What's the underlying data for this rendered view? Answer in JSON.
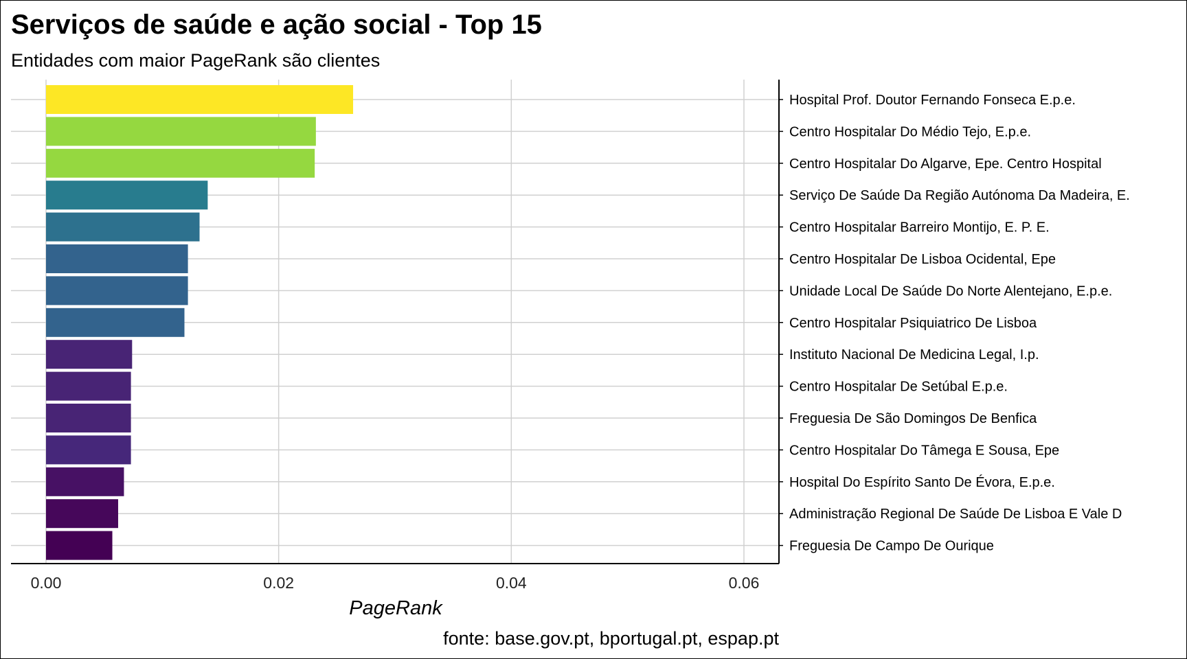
{
  "chart_data": {
    "type": "bar",
    "orientation": "horizontal",
    "title": "Serviços de saúde e ação social - Top 15",
    "subtitle": "Entidades com maior PageRank são clientes",
    "xlabel": "PageRank",
    "ylabel": "",
    "caption": "fonte: base.gov.pt, bportugal.pt, espap.pt",
    "xlim": [
      0,
      0.063
    ],
    "xticks": [
      0.0,
      0.02,
      0.04,
      0.06
    ],
    "xtick_labels": [
      "0.00",
      "0.02",
      "0.04",
      "0.06"
    ],
    "grid": true,
    "category_axis_side": "right",
    "categories": [
      "Hospital Prof. Doutor Fernando Fonseca E.p.e.",
      "Centro Hospitalar Do Médio Tejo, E.p.e.",
      "Centro Hospitalar Do Algarve, Epe. Centro Hospital",
      "Serviço De Saúde Da Região Autónoma Da Madeira, E.",
      "Centro Hospitalar Barreiro Montijo, E. P. E.",
      "Centro Hospitalar De Lisboa Ocidental, Epe",
      "Unidade Local De Saúde Do Norte Alentejano, E.p.e.",
      "Centro Hospitalar Psiquiatrico De Lisboa",
      "Instituto Nacional De Medicina Legal, I.p.",
      "Centro Hospitalar De Setúbal E.p.e.",
      "Freguesia De São Domingos De Benfica",
      "Centro Hospitalar Do Tâmega E Sousa, Epe",
      "Hospital Do Espírito Santo De Évora, E.p.e.",
      "Administração Regional De Saúde De Lisboa E Vale D",
      "Freguesia De Campo De Ourique"
    ],
    "values": [
      0.0264,
      0.0232,
      0.0231,
      0.0139,
      0.0132,
      0.0122,
      0.0122,
      0.0119,
      0.0074,
      0.0073,
      0.0073,
      0.0073,
      0.0067,
      0.0062,
      0.0057
    ],
    "colors": [
      "#FDE725",
      "#95D840",
      "#95D840",
      "#287C8E",
      "#2D718E",
      "#33638D",
      "#33638D",
      "#33638D",
      "#482475",
      "#482475",
      "#482475",
      "#46277A",
      "#471164",
      "#46075A",
      "#440154"
    ]
  }
}
